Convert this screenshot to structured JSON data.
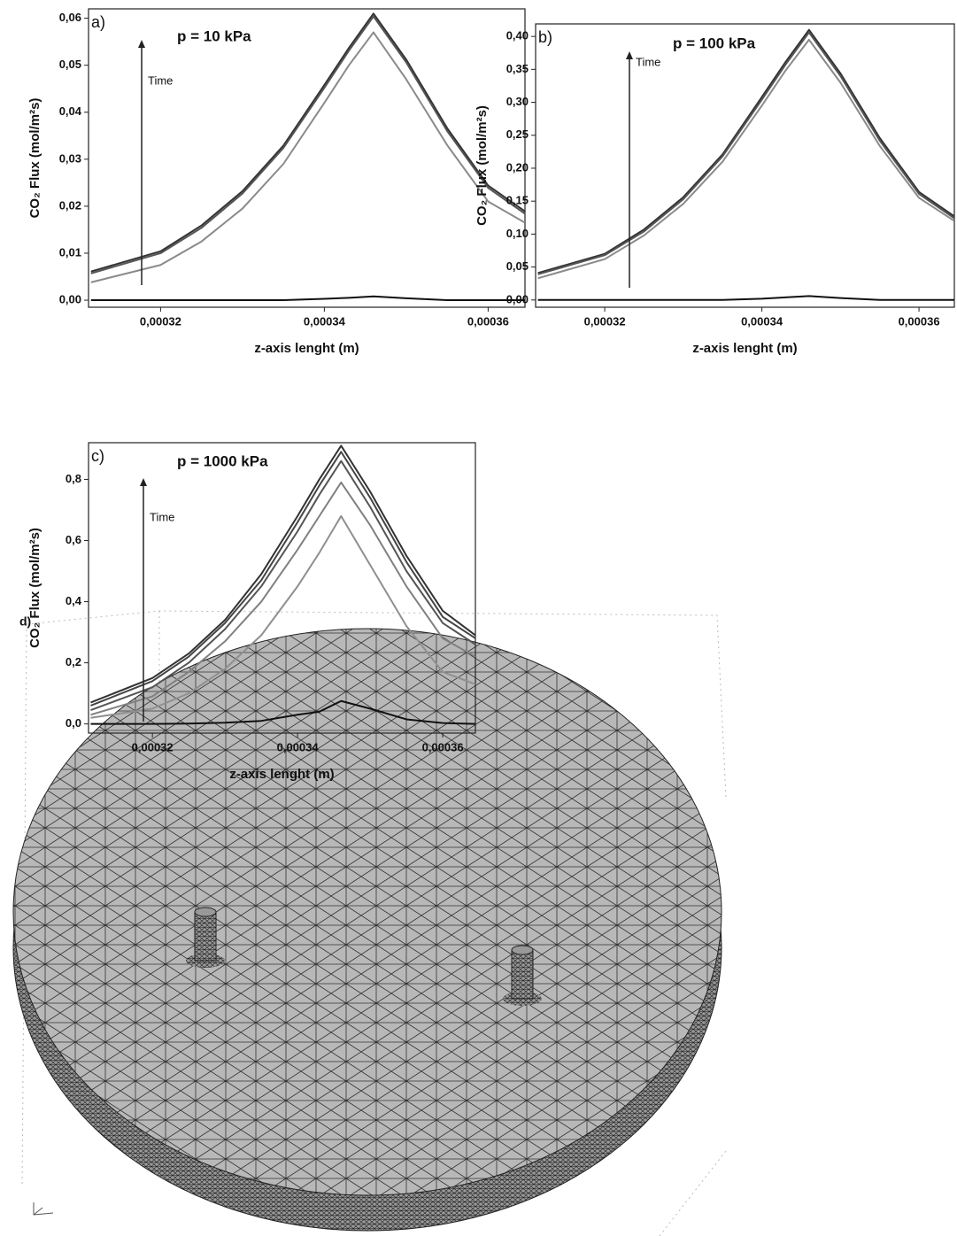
{
  "chart_data": [
    {
      "type": "line",
      "panel_label": "a)",
      "annotation": "p = 10 kPa",
      "arrow_label": "Time",
      "x_label": "z-axis lenght (m)",
      "y_label": "CO₂ Flux (mol/m²s)",
      "x": [
        0.0003115,
        0.00032,
        0.000325,
        0.00033,
        0.000335,
        0.00034,
        0.000343,
        0.000346,
        0.00035,
        0.000355,
        0.00036,
        0.0003645
      ],
      "xlim": [
        0.0003112,
        0.0003645
      ],
      "xticks": [
        {
          "value": 0.00032,
          "label": "0,00032"
        },
        {
          "value": 0.00034,
          "label": "0,00034"
        },
        {
          "value": 0.00036,
          "label": "0,00036"
        }
      ],
      "ylim": [
        -0.0015,
        0.062
      ],
      "yticks": [
        {
          "value": 0,
          "label": "0,00"
        },
        {
          "value": 0.01,
          "label": "0,01"
        },
        {
          "value": 0.02,
          "label": "0,02"
        },
        {
          "value": 0.03,
          "label": "0,03"
        },
        {
          "value": 0.04,
          "label": "0,04"
        },
        {
          "value": 0.05,
          "label": "0,05"
        },
        {
          "value": 0.06,
          "label": "0,06"
        }
      ],
      "series": [
        {
          "color": "#333333",
          "values": [
            0.0061,
            0.0104,
            0.0159,
            0.0232,
            0.0329,
            0.0458,
            0.0537,
            0.061,
            0.0512,
            0.0366,
            0.0244,
            0.0189
          ]
        },
        {
          "color": "#555555",
          "values": [
            0.0057,
            0.01,
            0.0154,
            0.0227,
            0.0324,
            0.0452,
            0.0531,
            0.0604,
            0.0506,
            0.036,
            0.0239,
            0.0184
          ]
        },
        {
          "color": "#8a8a8a",
          "values": [
            0.0038,
            0.0075,
            0.0125,
            0.0195,
            0.029,
            0.042,
            0.05,
            0.057,
            0.047,
            0.033,
            0.021,
            0.0165
          ]
        },
        {
          "color": "#111111",
          "values": [
            0,
            0,
            0,
            0,
            0,
            0.0003,
            0.0005,
            0.0008,
            0.0004,
            0,
            0,
            0
          ]
        }
      ]
    },
    {
      "type": "line",
      "panel_label": "b)",
      "annotation": "p = 100 kPa",
      "arrow_label": "Time",
      "x_label": "z-axis lenght (m)",
      "y_label": "CO₂ Flux (mol/m²s)",
      "x": [
        0.0003115,
        0.00032,
        0.000325,
        0.00033,
        0.000335,
        0.00034,
        0.000343,
        0.000346,
        0.00035,
        0.000355,
        0.00036,
        0.0003645
      ],
      "xlim": [
        0.0003112,
        0.0003645
      ],
      "xticks": [
        {
          "value": 0.00032,
          "label": "0,00032"
        },
        {
          "value": 0.00034,
          "label": "0,00034"
        },
        {
          "value": 0.00036,
          "label": "0,00036"
        }
      ],
      "ylim": [
        -0.011,
        0.419
      ],
      "yticks": [
        {
          "value": 0,
          "label": "0,00"
        },
        {
          "value": 0.05,
          "label": "0,05"
        },
        {
          "value": 0.1,
          "label": "0,10"
        },
        {
          "value": 0.15,
          "label": "0,15"
        },
        {
          "value": 0.2,
          "label": "0,20"
        },
        {
          "value": 0.25,
          "label": "0,25"
        },
        {
          "value": 0.3,
          "label": "0,30"
        },
        {
          "value": 0.35,
          "label": "0,35"
        },
        {
          "value": 0.4,
          "label": "0,40"
        }
      ],
      "series": [
        {
          "color": "#333333",
          "values": [
            0.041,
            0.07,
            0.107,
            0.156,
            0.221,
            0.308,
            0.361,
            0.41,
            0.344,
            0.246,
            0.164,
            0.127
          ]
        },
        {
          "color": "#555555",
          "values": [
            0.039,
            0.068,
            0.104,
            0.153,
            0.218,
            0.304,
            0.357,
            0.406,
            0.34,
            0.242,
            0.161,
            0.124
          ]
        },
        {
          "color": "#8a8a8a",
          "values": [
            0.033,
            0.062,
            0.098,
            0.146,
            0.21,
            0.295,
            0.348,
            0.395,
            0.33,
            0.234,
            0.155,
            0.12
          ]
        },
        {
          "color": "#111111",
          "values": [
            0,
            0,
            0,
            0,
            0,
            0.002,
            0.004,
            0.006,
            0.003,
            0,
            0,
            0
          ]
        }
      ]
    },
    {
      "type": "line",
      "panel_label": "c)",
      "annotation": "p = 1000 kPa",
      "arrow_label": "Time",
      "x_label": "z-axis lenght (m)",
      "y_label": "CO₂ Flux (mol/m²s)",
      "x": [
        0.0003115,
        0.00032,
        0.000325,
        0.00033,
        0.000335,
        0.00034,
        0.000343,
        0.000346,
        0.00035,
        0.000355,
        0.00036,
        0.0003645
      ],
      "xlim": [
        0.0003112,
        0.0003645
      ],
      "xticks": [
        {
          "value": 0.00032,
          "label": "0,00032"
        },
        {
          "value": 0.00034,
          "label": "0,00034"
        },
        {
          "value": 0.00036,
          "label": "0,00036"
        }
      ],
      "ylim": [
        -0.03,
        0.92
      ],
      "yticks": [
        {
          "value": 0,
          "label": "0,0"
        },
        {
          "value": 0.2,
          "label": "0,2"
        },
        {
          "value": 0.4,
          "label": "0,4"
        },
        {
          "value": 0.6,
          "label": "0,6"
        },
        {
          "value": 0.8,
          "label": "0,8"
        }
      ],
      "series": [
        {
          "color": "#333333",
          "values": [
            0.07,
            0.15,
            0.23,
            0.34,
            0.49,
            0.68,
            0.8,
            0.91,
            0.76,
            0.55,
            0.37,
            0.29
          ]
        },
        {
          "color": "#444444",
          "values": [
            0.06,
            0.14,
            0.22,
            0.33,
            0.47,
            0.66,
            0.78,
            0.89,
            0.74,
            0.53,
            0.35,
            0.28
          ]
        },
        {
          "color": "#555555",
          "values": [
            0.045,
            0.12,
            0.2,
            0.31,
            0.45,
            0.63,
            0.75,
            0.86,
            0.71,
            0.5,
            0.33,
            0.26
          ]
        },
        {
          "color": "#808080",
          "values": [
            0.03,
            0.09,
            0.17,
            0.27,
            0.4,
            0.57,
            0.68,
            0.79,
            0.65,
            0.45,
            0.28,
            0.22
          ]
        },
        {
          "color": "#8f8f8f",
          "values": [
            0.02,
            0.05,
            0.1,
            0.18,
            0.29,
            0.45,
            0.56,
            0.68,
            0.52,
            0.32,
            0.17,
            0.13
          ]
        },
        {
          "color": "#111111",
          "values": [
            0,
            0,
            0.001,
            0.004,
            0.01,
            0.03,
            0.04,
            0.075,
            0.05,
            0.015,
            0.003,
            0
          ]
        }
      ]
    }
  ],
  "figure_d": {
    "label": "d)"
  }
}
